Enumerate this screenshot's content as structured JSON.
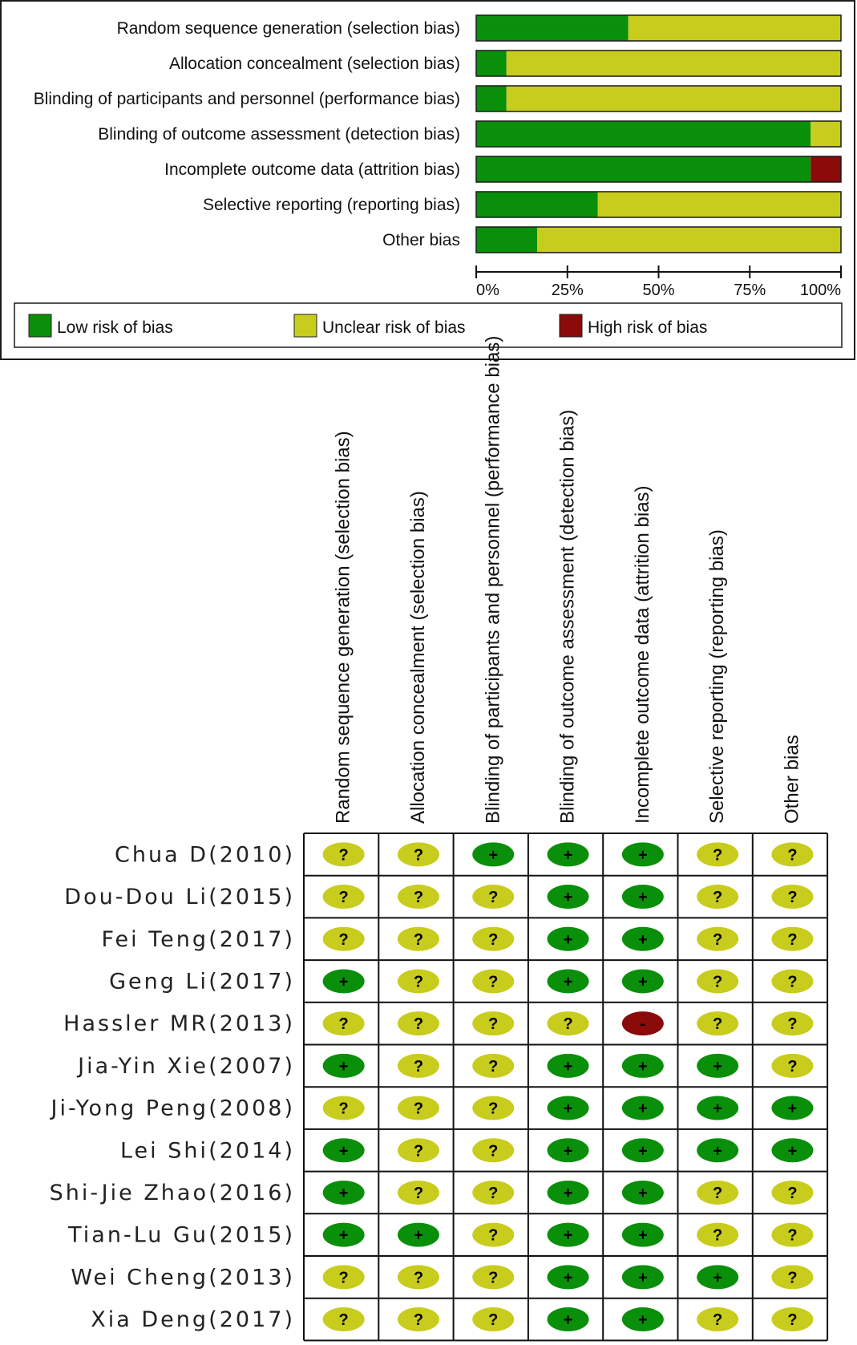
{
  "chart_data": [
    {
      "type": "bar",
      "orientation": "horizontal",
      "stacked": true,
      "categories": [
        "Random sequence generation (selection bias)",
        "Allocation concealment (selection bias)",
        "Blinding of participants and personnel (performance bias)",
        "Blinding of outcome assessment (detection bias)",
        "Incomplete outcome data (attrition bias)",
        "Selective reporting (reporting bias)",
        "Other bias"
      ],
      "series": [
        {
          "name": "Low risk of bias",
          "color": "#0a8f0a",
          "values": [
            41.7,
            8.3,
            8.3,
            91.7,
            91.7,
            33.3,
            16.7
          ]
        },
        {
          "name": "Unclear risk of bias",
          "color": "#c8cc1c",
          "values": [
            58.3,
            91.7,
            91.7,
            8.3,
            0,
            66.7,
            83.3
          ]
        },
        {
          "name": "High risk of bias",
          "color": "#8b0a0a",
          "values": [
            0,
            0,
            0,
            0,
            8.3,
            0,
            0
          ]
        }
      ],
      "x_ticks": [
        "0%",
        "25%",
        "50%",
        "75%",
        "100%"
      ],
      "xlim": [
        0,
        100
      ],
      "legend_position": "bottom"
    },
    {
      "type": "table",
      "columns": [
        "Random sequence generation (selection bias)",
        "Allocation concealment (selection bias)",
        "Blinding of participants and personnel (performance bias)",
        "Blinding of outcome assessment (detection bias)",
        "Incomplete outcome data (attrition bias)",
        "Selective reporting (reporting bias)",
        "Other bias"
      ],
      "rows": [
        {
          "study": "Chua D",
          "year": "(2010)",
          "judgements": [
            "?",
            "?",
            "+",
            "+",
            "+",
            "?",
            "?"
          ]
        },
        {
          "study": "Dou-Dou Li",
          "year": "(2015)",
          "judgements": [
            "?",
            "?",
            "?",
            "+",
            "+",
            "?",
            "?"
          ]
        },
        {
          "study": "Fei Teng",
          "year": "(2017)",
          "judgements": [
            "?",
            "?",
            "?",
            "+",
            "+",
            "?",
            "?"
          ]
        },
        {
          "study": "Geng Li",
          "year": "(2017)",
          "judgements": [
            "+",
            "?",
            "?",
            "+",
            "+",
            "?",
            "?"
          ]
        },
        {
          "study": "Hassler MR",
          "year": "(2013)",
          "judgements": [
            "?",
            "?",
            "?",
            "?",
            "-",
            "?",
            "?"
          ]
        },
        {
          "study": "Jia-Yin Xie",
          "year": "(2007)",
          "judgements": [
            "+",
            "?",
            "?",
            "+",
            "+",
            "+",
            "?"
          ]
        },
        {
          "study": "Ji-Yong Peng",
          "year": "(2008)",
          "judgements": [
            "?",
            "?",
            "?",
            "+",
            "+",
            "+",
            "+"
          ]
        },
        {
          "study": "Lei Shi",
          "year": "(2014)",
          "judgements": [
            "+",
            "?",
            "?",
            "+",
            "+",
            "+",
            "+"
          ]
        },
        {
          "study": "Shi-Jie Zhao",
          "year": "(2016)",
          "judgements": [
            "+",
            "?",
            "?",
            "+",
            "+",
            "?",
            "?"
          ]
        },
        {
          "study": "Tian-Lu Gu",
          "year": "(2015)",
          "judgements": [
            "+",
            "+",
            "?",
            "+",
            "+",
            "?",
            "?"
          ]
        },
        {
          "study": "Wei Cheng",
          "year": "(2013)",
          "judgements": [
            "?",
            "?",
            "?",
            "+",
            "+",
            "+",
            "?"
          ]
        },
        {
          "study": "Xia Deng",
          "year": "(2017)",
          "judgements": [
            "?",
            "?",
            "?",
            "+",
            "+",
            "?",
            "?"
          ]
        }
      ],
      "symbol_colors": {
        "+": "#0a8f0a",
        "?": "#c8cc1c",
        "-": "#8b0a0a"
      }
    }
  ]
}
